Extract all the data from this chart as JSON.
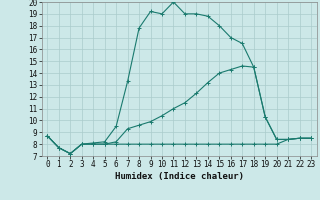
{
  "bg_color": "#cce8e8",
  "grid_color": "#aacccc",
  "line_color": "#1a7a6e",
  "xlabel": "Humidex (Indice chaleur)",
  "xlim": [
    -0.5,
    23.5
  ],
  "ylim": [
    7,
    20
  ],
  "yticks": [
    7,
    8,
    9,
    10,
    11,
    12,
    13,
    14,
    15,
    16,
    17,
    18,
    19,
    20
  ],
  "xticks": [
    0,
    1,
    2,
    3,
    4,
    5,
    6,
    7,
    8,
    9,
    10,
    11,
    12,
    13,
    14,
    15,
    16,
    17,
    18,
    19,
    20,
    21,
    22,
    23
  ],
  "line1_x": [
    0,
    1,
    2,
    3,
    4,
    5,
    6,
    7,
    8,
    9,
    10,
    11,
    12,
    13,
    14,
    15,
    16,
    17,
    18,
    19,
    20,
    21,
    22,
    23
  ],
  "line1_y": [
    8.7,
    7.7,
    7.2,
    8.0,
    8.0,
    8.0,
    8.0,
    8.0,
    8.0,
    8.0,
    8.0,
    8.0,
    8.0,
    8.0,
    8.0,
    8.0,
    8.0,
    8.0,
    8.0,
    8.0,
    8.0,
    8.4,
    8.5,
    8.5
  ],
  "line2_x": [
    0,
    1,
    2,
    3,
    4,
    5,
    6,
    7,
    8,
    9,
    10,
    11,
    12,
    13,
    14,
    15,
    16,
    17,
    18,
    19,
    20,
    21,
    22,
    23
  ],
  "line2_y": [
    8.7,
    7.7,
    7.2,
    8.0,
    8.0,
    8.0,
    8.2,
    9.3,
    9.6,
    9.9,
    10.4,
    11.0,
    11.5,
    12.3,
    13.2,
    14.0,
    14.3,
    14.6,
    14.5,
    10.3,
    8.4,
    8.4,
    8.5,
    8.5
  ],
  "line3_x": [
    0,
    1,
    2,
    3,
    4,
    5,
    6,
    7,
    8,
    9,
    10,
    11,
    12,
    13,
    14,
    15,
    16,
    17,
    18,
    19,
    20,
    21,
    22,
    23
  ],
  "line3_y": [
    8.7,
    7.7,
    7.2,
    8.0,
    8.1,
    8.2,
    9.5,
    13.3,
    17.8,
    19.2,
    19.0,
    20.0,
    19.0,
    19.0,
    18.8,
    18.0,
    17.0,
    16.5,
    14.5,
    10.3,
    8.4,
    8.4,
    8.5,
    8.5
  ],
  "tick_fontsize": 5.5,
  "xlabel_fontsize": 6.5
}
